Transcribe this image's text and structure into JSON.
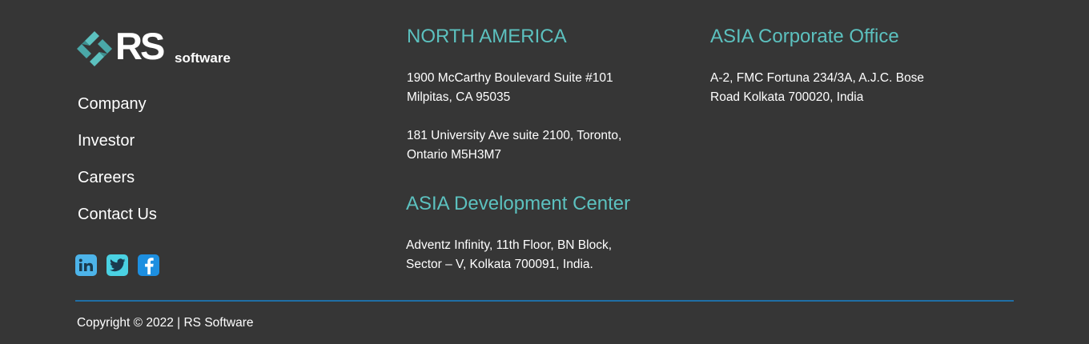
{
  "brand": {
    "name": "RS",
    "suffix": "software",
    "accent_color": "#5cc1bf",
    "background_color": "#363636",
    "divider_color": "#1f6fa6"
  },
  "nav": {
    "items": [
      {
        "label": "Company"
      },
      {
        "label": "Investor"
      },
      {
        "label": "Careers"
      },
      {
        "label": "Contact Us"
      }
    ]
  },
  "social": {
    "icons": [
      {
        "name": "linkedin-icon",
        "color": "#4db4ea"
      },
      {
        "name": "twitter-icon",
        "color": "#4ad1e2"
      },
      {
        "name": "facebook-icon",
        "color": "#1d8fe0"
      }
    ]
  },
  "offices": {
    "north_america": {
      "title": "NORTH AMERICA",
      "address1_line1": "1900 McCarthy Boulevard Suite #101",
      "address1_line2": "Milpitas, CA 95035",
      "address2_line1": "181 University Ave suite 2100, Toronto,",
      "address2_line2": "Ontario M5H3M7"
    },
    "asia_dev": {
      "title": "ASIA Development Center",
      "line1": "Adventz Infinity, 11th Floor, BN Block,",
      "line2": "Sector – V, Kolkata 700091, India."
    },
    "asia_corp": {
      "title": "ASIA Corporate Office",
      "line1": "A-2, FMC Fortuna 234/3A, A.J.C. Bose",
      "line2": "Road Kolkata 700020, India"
    }
  },
  "footer": {
    "copyright": "Copyright © 2022 | RS Software"
  }
}
